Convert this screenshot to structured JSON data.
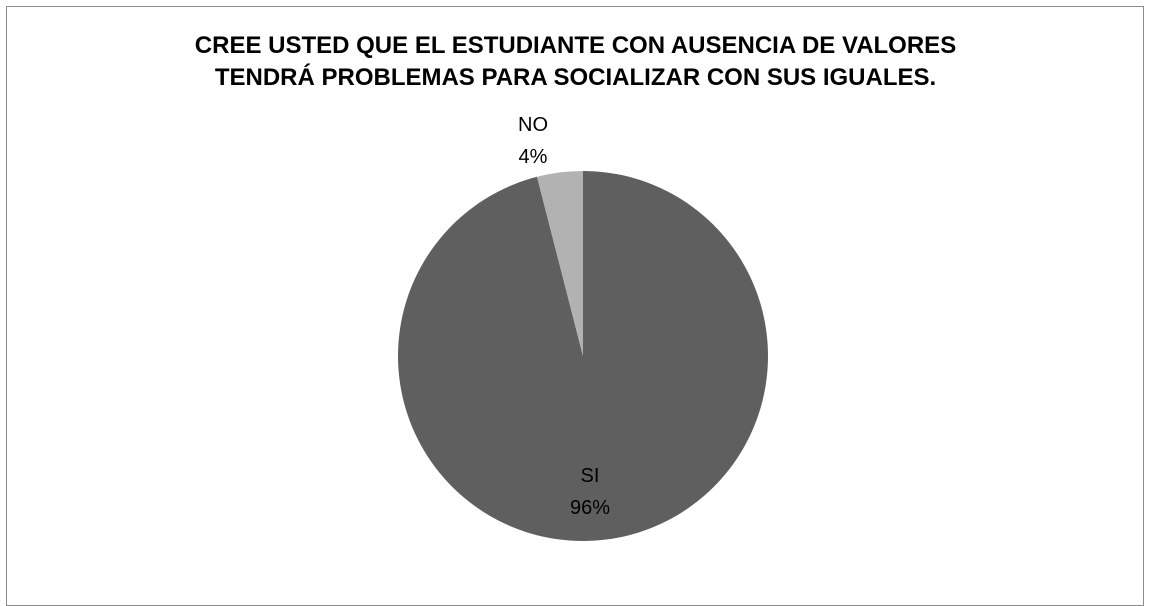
{
  "chart_data": {
    "type": "pie",
    "title_lines": [
      "CREE USTED QUE EL ESTUDIANTE CON AUSENCIA DE VALORES",
      "TENDRÁ PROBLEMAS PARA SOCIALIZAR CON SUS IGUALES."
    ],
    "slices": [
      {
        "label": "SI",
        "value": 96,
        "display": "96%",
        "color": "#5f5f5f"
      },
      {
        "label": "NO",
        "value": 4,
        "display": "4%",
        "color": "#b2b2b2"
      }
    ],
    "start": "12 o'clock",
    "direction": "clockwise",
    "legend": "none"
  }
}
